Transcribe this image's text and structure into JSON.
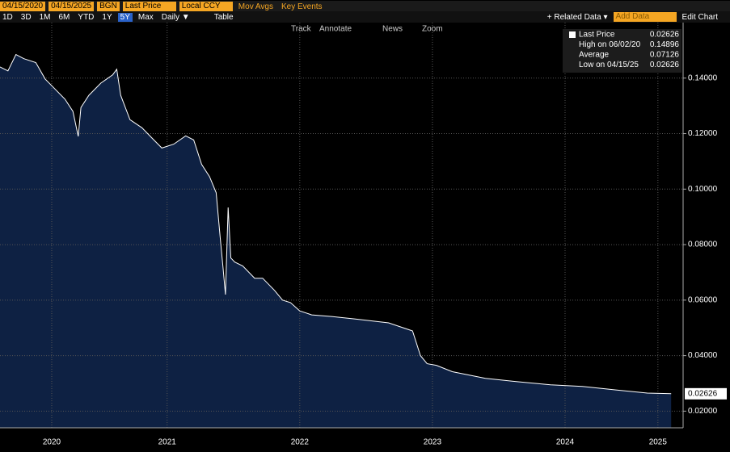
{
  "toolbar": {
    "start_date": "04/15/2020",
    "end_date": "04/15/2025",
    "source": "BGN",
    "field": "Last Price",
    "currency": "Local CCY",
    "mov_avgs": "Mov Avgs",
    "key_events": "Key Events",
    "ranges": [
      "1D",
      "3D",
      "1M",
      "6M",
      "YTD",
      "1Y",
      "5Y",
      "Max"
    ],
    "active_range": "5Y",
    "frequency": "Daily ▼",
    "table": "Table",
    "related_data": "+ Related Data ▾",
    "add_data": "Add Data",
    "edit_chart": "Edit Chart",
    "tools": [
      "Track",
      "Annotate",
      "News",
      "Zoom"
    ]
  },
  "chart_data": {
    "type": "area",
    "legend": [
      {
        "label": "Last Price",
        "value": "0.02626"
      },
      {
        "label": "High on 06/02/20",
        "value": "0.14896"
      },
      {
        "label": "Average",
        "value": "0.07126"
      },
      {
        "label": "Low on 04/15/25",
        "value": "0.02626"
      }
    ],
    "last_value": 0.02626,
    "last_value_label": "0.02626",
    "series": [
      {
        "name": "Last Price",
        "color": "#ffffff",
        "fill": "#0e2143",
        "x": [
          2020.24,
          2020.3,
          2020.36,
          2020.42,
          2020.51,
          2020.58,
          2020.64,
          2020.73,
          2020.79,
          2020.83,
          2020.85,
          2020.91,
          2021.0,
          2021.09,
          2021.12,
          2021.15,
          2021.22,
          2021.31,
          2021.4,
          2021.46,
          2021.55,
          2021.64,
          2021.7,
          2021.76,
          2021.82,
          2021.87,
          2021.9,
          2021.92,
          2021.94,
          2021.96,
          2021.98,
          2022.01,
          2022.07,
          2022.16,
          2022.22,
          2022.31,
          2022.37,
          2022.43,
          2022.5,
          2022.59,
          2022.74,
          2022.92,
          2023.17,
          2023.35,
          2023.41,
          2023.46,
          2023.53,
          2023.65,
          2023.9,
          2024.14,
          2024.39,
          2024.63,
          2024.87,
          2025.12,
          2025.3
        ],
        "values": [
          0.144,
          0.1426,
          0.1485,
          0.147,
          0.1456,
          0.1397,
          0.1368,
          0.1324,
          0.128,
          0.119,
          0.1294,
          0.1338,
          0.1382,
          0.1412,
          0.1432,
          0.1338,
          0.125,
          0.1221,
          0.1177,
          0.1148,
          0.1162,
          0.1192,
          0.1177,
          0.1089,
          0.1045,
          0.0987,
          0.0825,
          0.0723,
          0.062,
          0.0934,
          0.0752,
          0.0737,
          0.0723,
          0.0679,
          0.0679,
          0.0635,
          0.06,
          0.0591,
          0.0561,
          0.0547,
          0.0541,
          0.0532,
          0.0518,
          0.0489,
          0.04,
          0.0371,
          0.0365,
          0.0342,
          0.0318,
          0.0306,
          0.0295,
          0.0289,
          0.0277,
          0.0265,
          0.02626
        ]
      }
    ],
    "xlim": [
      2020.24,
      2025.39
    ],
    "xticks": [
      {
        "value": 2020.63,
        "label": "2020"
      },
      {
        "value": 2021.5,
        "label": "2021"
      },
      {
        "value": 2022.5,
        "label": "2022"
      },
      {
        "value": 2023.5,
        "label": "2023"
      },
      {
        "value": 2024.5,
        "label": "2024"
      },
      {
        "value": 2025.2,
        "label": "2025"
      }
    ],
    "ylim": [
      0.014,
      0.16
    ],
    "yticks": [
      {
        "value": 0.02,
        "label": "0.02000"
      },
      {
        "value": 0.04,
        "label": "0.04000"
      },
      {
        "value": 0.06,
        "label": "0.06000"
      },
      {
        "value": 0.08,
        "label": "0.08000"
      },
      {
        "value": 0.1,
        "label": "0.10000"
      },
      {
        "value": 0.12,
        "label": "0.12000"
      },
      {
        "value": 0.14,
        "label": "0.14000"
      }
    ],
    "grid": true
  }
}
